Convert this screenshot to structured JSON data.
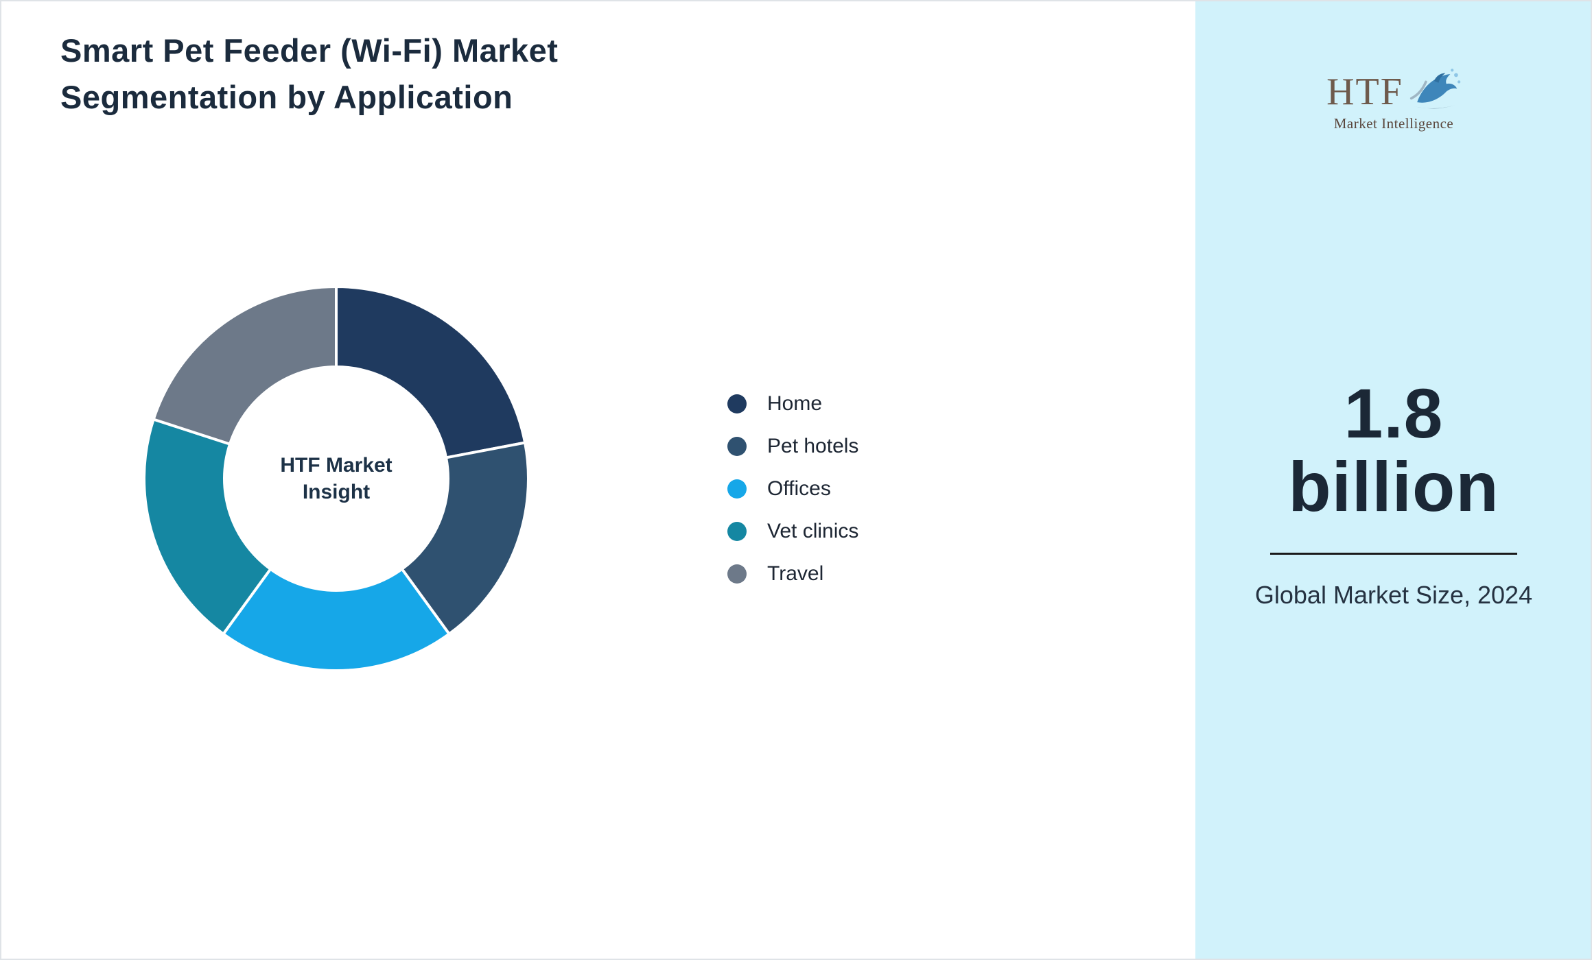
{
  "page": {
    "title_line1": "Smart Pet Feeder (Wi-Fi) Market",
    "title_line2": "Segmentation by Application"
  },
  "logo": {
    "text": "HTF",
    "subtext": "Market Intelligence"
  },
  "sidebar": {
    "background_color": "#d1f2fb",
    "market_size_value": "1.8",
    "market_size_unit": "billion",
    "market_size_caption": "Global Market Size, 2024"
  },
  "chart_data": {
    "type": "pie",
    "donut": true,
    "title": "Smart Pet Feeder (Wi-Fi) Market Segmentation by Application",
    "center_label_line1": "HTF Market",
    "center_label_line2": "Insight",
    "legend_position": "right",
    "start_angle_deg": 0,
    "direction": "clockwise",
    "segments": [
      {
        "label": "Home",
        "value": 22,
        "color": "#1f3a5f"
      },
      {
        "label": "Pet hotels",
        "value": 18,
        "color": "#2f5170"
      },
      {
        "label": "Offices",
        "value": 20,
        "color": "#16a7e8"
      },
      {
        "label": "Vet clinics",
        "value": 20,
        "color": "#1587a2"
      },
      {
        "label": "Travel",
        "value": 20,
        "color": "#6d7989"
      }
    ]
  }
}
